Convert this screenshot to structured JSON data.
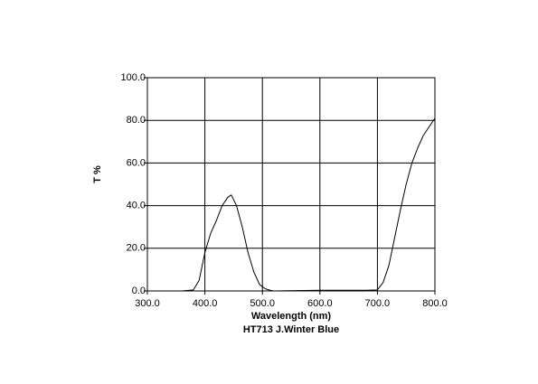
{
  "chart_data": {
    "type": "line",
    "x_label": "Wavelength (nm)",
    "title": "HT713 J.Winter Blue",
    "y_label": "T %",
    "x": [
      360,
      380,
      390,
      400,
      410,
      420,
      430,
      440,
      446,
      455,
      465,
      475,
      485,
      495,
      505,
      515,
      520,
      600,
      680,
      700,
      710,
      720,
      730,
      740,
      750,
      760,
      770,
      780,
      790,
      800
    ],
    "series": [
      {
        "name": "HT713 J.Winter Blue",
        "color": "#000000",
        "values": [
          0,
          0.5,
          5,
          18,
          27,
          33,
          40,
          44,
          45,
          40,
          30,
          18,
          9,
          3,
          1,
          0.2,
          0,
          0.3,
          0.3,
          0.5,
          4,
          12,
          25,
          38,
          50,
          60,
          67,
          73,
          77,
          81
        ]
      }
    ],
    "xlim": [
      300,
      800
    ],
    "ylim": [
      0,
      100
    ],
    "xticks": [
      {
        "value": 300,
        "label": "300.0"
      },
      {
        "value": 400,
        "label": "400.0"
      },
      {
        "value": 500,
        "label": "500.0"
      },
      {
        "value": 600,
        "label": "600.0"
      },
      {
        "value": 700,
        "label": "700.0"
      },
      {
        "value": 800,
        "label": "800.0"
      }
    ],
    "yticks": [
      {
        "value": 0,
        "label": "0.0"
      },
      {
        "value": 20,
        "label": "20.0"
      },
      {
        "value": 40,
        "label": "40.0"
      },
      {
        "value": 60,
        "label": "60.0"
      },
      {
        "value": 80,
        "label": "80.0"
      },
      {
        "value": 100,
        "label": "100.0"
      }
    ],
    "grid": true
  }
}
